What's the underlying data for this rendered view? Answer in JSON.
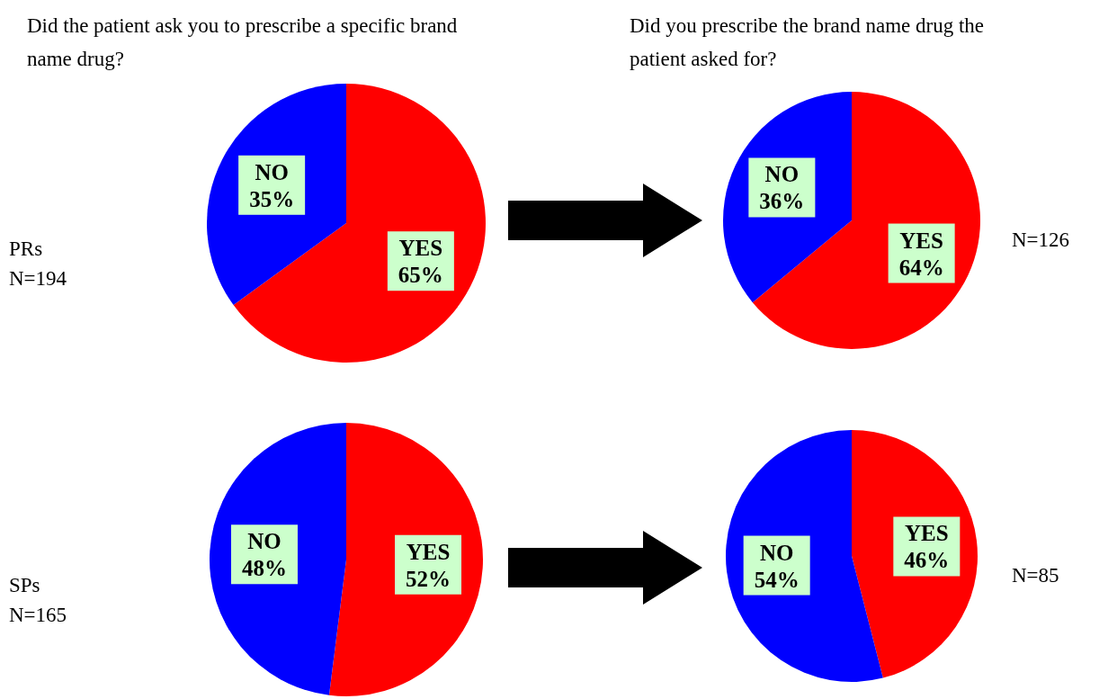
{
  "chart_data": [
    {
      "type": "pie",
      "title": "Did the patient ask you to prescribe a specific brand name drug?",
      "categories": [
        "YES",
        "NO"
      ],
      "values": [
        65,
        35
      ],
      "colors": [
        "#ff0000",
        "#0000ff"
      ],
      "value_labels": [
        "65%",
        "35%"
      ],
      "annotations": [
        "PRs",
        "N=194"
      ]
    },
    {
      "type": "pie",
      "title": "Did you prescribe the brand name drug the patient asked for?",
      "categories": [
        "YES",
        "NO"
      ],
      "values": [
        64,
        36
      ],
      "colors": [
        "#ff0000",
        "#0000ff"
      ],
      "value_labels": [
        "64%",
        "36%"
      ],
      "annotations": [
        "N=126"
      ]
    },
    {
      "type": "pie",
      "categories": [
        "YES",
        "NO"
      ],
      "values": [
        52,
        48
      ],
      "colors": [
        "#ff0000",
        "#0000ff"
      ],
      "value_labels": [
        "52%",
        "48%"
      ],
      "annotations": [
        "SPs",
        "N=165"
      ]
    },
    {
      "type": "pie",
      "categories": [
        "YES",
        "NO"
      ],
      "values": [
        46,
        54
      ],
      "colors": [
        "#ff0000",
        "#0000ff"
      ],
      "value_labels": [
        "46%",
        "54%"
      ],
      "annotations": [
        "N=85"
      ]
    }
  ]
}
